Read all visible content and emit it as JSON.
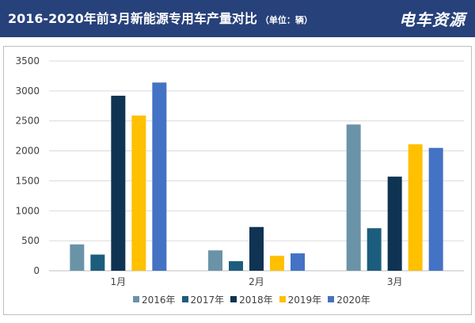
{
  "header": {
    "title": "2016-2020年前3月新能源专用车产量对比",
    "unit": "（单位：辆）",
    "brand": "电车资源"
  },
  "chart_data": {
    "type": "bar",
    "title": "2016-2020年前3月新能源专用车产量对比",
    "categories": [
      "1月",
      "2月",
      "3月"
    ],
    "series": [
      {
        "name": "2016年",
        "color": "#6b93a8",
        "values": [
          440,
          340,
          2440
        ]
      },
      {
        "name": "2017年",
        "color": "#1c5d7d",
        "values": [
          270,
          160,
          710
        ]
      },
      {
        "name": "2018年",
        "color": "#0f3352",
        "values": [
          2920,
          730,
          1570
        ]
      },
      {
        "name": "2019年",
        "color": "#ffc000",
        "values": [
          2590,
          250,
          2110
        ]
      },
      {
        "name": "2020年",
        "color": "#4472c4",
        "values": [
          3140,
          290,
          2050
        ]
      }
    ],
    "yticks": [
      0,
      500,
      1000,
      1500,
      2000,
      2500,
      3000,
      3500
    ],
    "ylim": [
      0,
      3500
    ],
    "grid": true,
    "legend_position": "bottom",
    "xlabel": "",
    "ylabel": ""
  }
}
